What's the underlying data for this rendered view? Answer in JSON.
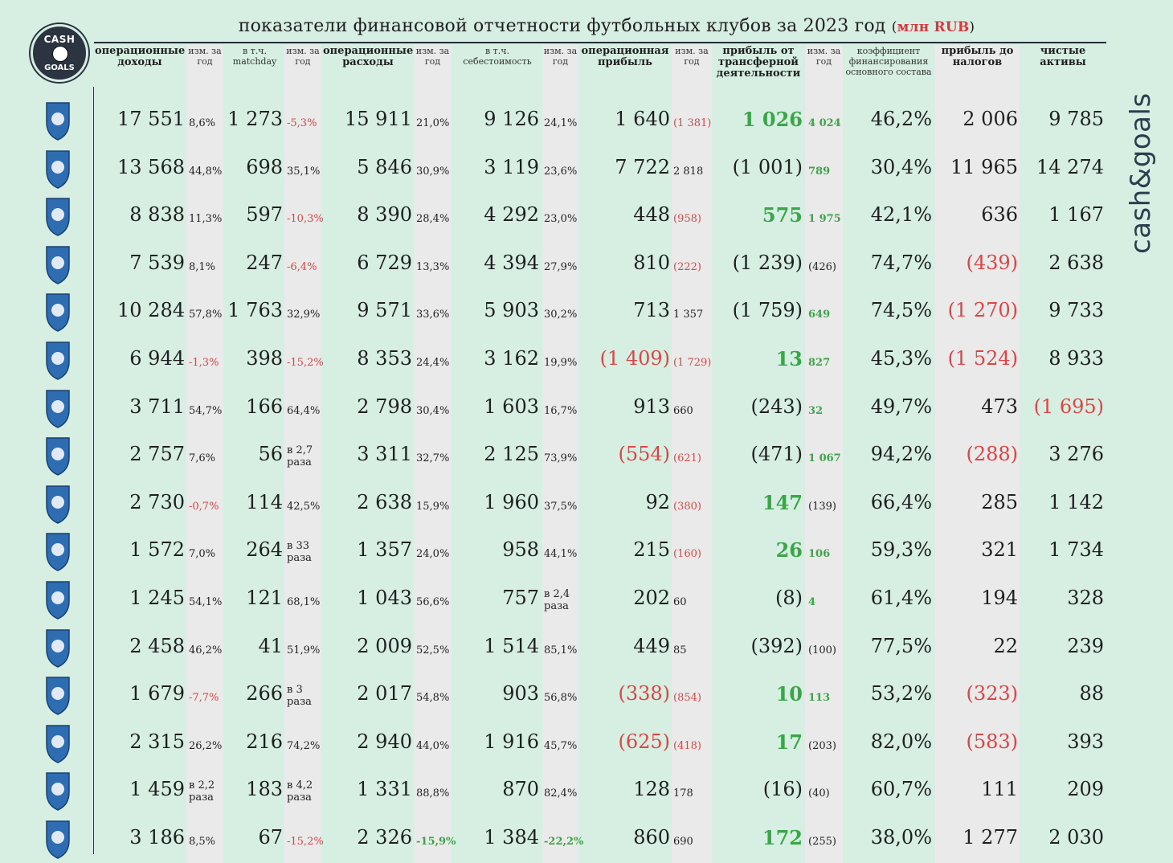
{
  "title": "показатели финансовой отчетности футбольных клубов за 2023 год",
  "unit_open": "(",
  "unit": "млн RUB",
  "unit_close": ")",
  "brand": {
    "logo_top": "CASH",
    "logo_bottom": "GOALS",
    "vertical": "cash&goals"
  },
  "colors": {
    "negative": "#e04343",
    "positive": "#3ba549",
    "background": "#d6efe2",
    "stripe": "#eaeaea"
  },
  "headers": {
    "op_income": "операционные доходы",
    "chg": "изм. за год",
    "matchday": "в т.ч. matchday",
    "op_expense": "операционные расходы",
    "cost": "в т.ч. себестоимость",
    "op_profit": "операционная прибыль",
    "transfer": "прибыль от трансферной деятельности",
    "funding": "коэффициент финансирования основного состава",
    "pretax": "прибыль до налогов",
    "assets": "чистые активы"
  },
  "rows": [
    {
      "club": "zenit-logo",
      "inc": "17 551",
      "inc_c": "8,6%",
      "md": "1 273",
      "md_c": "-5,3%",
      "exp": "15 911",
      "exp_c": "21,0%",
      "cost": "9 126",
      "cost_c": "24,1%",
      "op": "1 640",
      "op_c": "(1 381)",
      "tr": "1 026",
      "tr_c": "4 024",
      "fund": "46,2%",
      "pre": "2 006",
      "na": "9 785"
    },
    {
      "club": "krasnodar-logo",
      "inc": "13 568",
      "inc_c": "44,8%",
      "md": "698",
      "md_c": "35,1%",
      "exp": "5 846",
      "exp_c": "30,9%",
      "cost": "3 119",
      "cost_c": "23,6%",
      "op": "7 722",
      "op_c": "2 818",
      "tr": "(1 001)",
      "tr_c": "789",
      "fund": "30,4%",
      "pre": "11 965",
      "na": "14 274"
    },
    {
      "club": "dynamo-logo",
      "inc": "8 838",
      "inc_c": "11,3%",
      "md": "597",
      "md_c": "-10,3%",
      "exp": "8 390",
      "exp_c": "28,4%",
      "cost": "4 292",
      "cost_c": "23,0%",
      "op": "448",
      "op_c": "(958)",
      "tr": "575",
      "tr_c": "1 975",
      "fund": "42,1%",
      "pre": "636",
      "na": "1 167"
    },
    {
      "club": "lokomotiv-logo",
      "inc": "7 539",
      "inc_c": "8,1%",
      "md": "247",
      "md_c": "-6,4%",
      "exp": "6 729",
      "exp_c": "13,3%",
      "cost": "4 394",
      "cost_c": "27,9%",
      "op": "810",
      "op_c": "(222)",
      "tr": "(1 239)",
      "tr_c": "(426)",
      "fund": "74,7%",
      "pre": "(439)",
      "na": "2 638"
    },
    {
      "club": "spartak-logo",
      "inc": "10 284",
      "inc_c": "57,8%",
      "md": "1 763",
      "md_c": "32,9%",
      "exp": "9 571",
      "exp_c": "33,6%",
      "cost": "5 903",
      "cost_c": "30,2%",
      "op": "713",
      "op_c": "1 357",
      "tr": "(1 759)",
      "tr_c": "649",
      "fund": "74,5%",
      "pre": "(1 270)",
      "na": "9 733"
    },
    {
      "club": "cska-logo",
      "inc": "6 944",
      "inc_c": "-1,3%",
      "md": "398",
      "md_c": "-15,2%",
      "exp": "8 353",
      "exp_c": "24,4%",
      "cost": "3 162",
      "cost_c": "19,9%",
      "op": "(1 409)",
      "op_c": "(1 729)",
      "tr": "13",
      "tr_c": "827",
      "fund": "45,3%",
      "pre": "(1 524)",
      "na": "8 933"
    },
    {
      "club": "rostov-logo",
      "inc": "3 711",
      "inc_c": "54,7%",
      "md": "166",
      "md_c": "64,4%",
      "exp": "2 798",
      "exp_c": "30,4%",
      "cost": "1 603",
      "cost_c": "16,7%",
      "op": "913",
      "op_c": "660",
      "tr": "(243)",
      "tr_c": "32",
      "fund": "49,7%",
      "pre": "473",
      "na": "(1 695)"
    },
    {
      "club": "rubin-logo",
      "inc": "2 757",
      "inc_c": "7,6%",
      "md": "56",
      "md_c": "в 2,7 раза",
      "exp": "3 311",
      "exp_c": "32,7%",
      "cost": "2 125",
      "cost_c": "73,9%",
      "op": "(554)",
      "op_c": "(621)",
      "tr": "(471)",
      "tr_c": "1 067",
      "fund": "94,2%",
      "pre": "(288)",
      "na": "3 276"
    },
    {
      "club": "krylia-logo",
      "inc": "2 730",
      "inc_c": "-0,7%",
      "md": "114",
      "md_c": "42,5%",
      "exp": "2 638",
      "exp_c": "15,9%",
      "cost": "1 960",
      "cost_c": "37,5%",
      "op": "92",
      "op_c": "(380)",
      "tr": "147",
      "tr_c": "(139)",
      "fund": "66,4%",
      "pre": "285",
      "na": "1 142"
    },
    {
      "club": "akhmat-logo",
      "inc": "1 572",
      "inc_c": "7,0%",
      "md": "264",
      "md_c": "в 33 раза",
      "exp": "1 357",
      "exp_c": "24,0%",
      "cost": "958",
      "cost_c": "44,1%",
      "op": "215",
      "op_c": "(160)",
      "tr": "26",
      "tr_c": "106",
      "fund": "59,3%",
      "pre": "321",
      "na": "1 734"
    },
    {
      "club": "fakel-logo",
      "inc": "1 245",
      "inc_c": "54,1%",
      "md": "121",
      "md_c": "68,1%",
      "exp": "1 043",
      "exp_c": "56,6%",
      "cost": "757",
      "cost_c": "в 2,4 раза",
      "op": "202",
      "op_c": "60",
      "tr": "(8)",
      "tr_c": "4",
      "fund": "61,4%",
      "pre": "194",
      "na": "328"
    },
    {
      "club": "orenburg-logo",
      "inc": "2 458",
      "inc_c": "46,2%",
      "md": "41",
      "md_c": "51,9%",
      "exp": "2 009",
      "exp_c": "52,5%",
      "cost": "1 514",
      "cost_c": "85,1%",
      "op": "449",
      "op_c": "85",
      "tr": "(392)",
      "tr_c": "(100)",
      "fund": "77,5%",
      "pre": "22",
      "na": "239"
    },
    {
      "club": "pari-nn-logo",
      "inc": "1 679",
      "inc_c": "-7,7%",
      "md": "266",
      "md_c": "в 3 раза",
      "exp": "2 017",
      "exp_c": "54,8%",
      "cost": "903",
      "cost_c": "56,8%",
      "op": "(338)",
      "op_c": "(854)",
      "tr": "10",
      "tr_c": "113",
      "fund": "53,2%",
      "pre": "(323)",
      "na": "88"
    },
    {
      "club": "ural-logo",
      "inc": "2 315",
      "inc_c": "26,2%",
      "md": "216",
      "md_c": "74,2%",
      "exp": "2 940",
      "exp_c": "44,0%",
      "cost": "1 916",
      "cost_c": "45,7%",
      "op": "(625)",
      "op_c": "(418)",
      "tr": "17",
      "tr_c": "(203)",
      "fund": "82,0%",
      "pre": "(583)",
      "na": "393"
    },
    {
      "club": "baltika-logo",
      "inc": "1 459",
      "inc_c": "в 2,2 раза",
      "md": "183",
      "md_c": "в 4,2 раза",
      "exp": "1 331",
      "exp_c": "88,8%",
      "cost": "870",
      "cost_c": "82,4%",
      "op": "128",
      "op_c": "178",
      "tr": "(16)",
      "tr_c": "(40)",
      "fund": "60,7%",
      "pre": "111",
      "na": "209"
    },
    {
      "club": "sochi-logo",
      "inc": "3 186",
      "inc_c": "8,5%",
      "md": "67",
      "md_c": "-15,2%",
      "exp": "2 326",
      "exp_c": "-15,9%",
      "cost": "1 384",
      "cost_c": "-22,2%",
      "op": "860",
      "op_c": "690",
      "tr": "172",
      "tr_c": "(255)",
      "fund": "38,0%",
      "pre": "1 277",
      "na": "2 030"
    }
  ]
}
